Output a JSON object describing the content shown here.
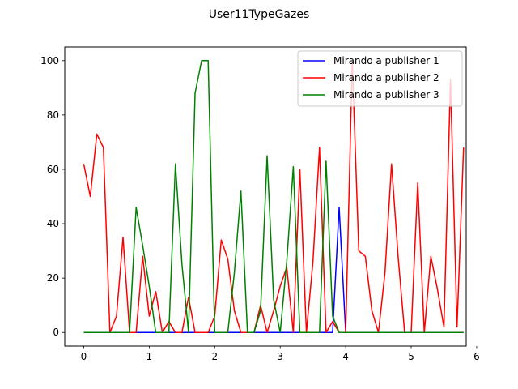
{
  "chart_data": {
    "type": "line",
    "title": "User11TypeGazes",
    "xlabel": "",
    "ylabel": "",
    "xlim": [
      -0.29,
      5.84
    ],
    "ylim": [
      -5,
      105
    ],
    "xticks": [
      0,
      1,
      2,
      3,
      4,
      5,
      6
    ],
    "yticks": [
      0,
      20,
      40,
      60,
      80,
      100
    ],
    "grid": false,
    "legend": "top-right",
    "x": [
      0.0,
      0.1,
      0.2,
      0.3,
      0.4,
      0.5,
      0.6,
      0.7,
      0.8,
      0.9,
      1.0,
      1.1,
      1.2,
      1.3,
      1.4,
      1.5,
      1.6,
      1.7,
      1.8,
      1.9,
      2.0,
      2.1,
      2.2,
      2.3,
      2.4,
      2.5,
      2.6,
      2.7,
      2.8,
      2.9,
      3.0,
      3.1,
      3.2,
      3.3,
      3.4,
      3.5,
      3.6,
      3.7,
      3.8,
      3.9,
      4.0,
      4.1,
      4.2,
      4.3,
      4.4,
      4.5,
      4.6,
      4.7,
      4.8,
      4.9,
      5.0,
      5.1,
      5.2,
      5.3,
      5.4,
      5.5,
      5.6,
      5.7,
      5.8
    ],
    "series": [
      {
        "name": "Mirando a publisher 1",
        "color": "#0000ff",
        "values": [
          0,
          0,
          0,
          0,
          0,
          0,
          0,
          0,
          0,
          0,
          0,
          0,
          0,
          0,
          0,
          0,
          0,
          0,
          0,
          0,
          0,
          0,
          0,
          0,
          0,
          0,
          0,
          0,
          0,
          0,
          0,
          0,
          0,
          0,
          0,
          0,
          0,
          0,
          0,
          46,
          0,
          0,
          0,
          0,
          0,
          0,
          0,
          0,
          0,
          0,
          0,
          0,
          0,
          0,
          0,
          0,
          0,
          0,
          0
        ]
      },
      {
        "name": "Mirando a publisher 2",
        "color": "#ff0000",
        "values": [
          62,
          50,
          73,
          68,
          0,
          6,
          35,
          0,
          0,
          28,
          6,
          15,
          0,
          4,
          0,
          0,
          13,
          0,
          0,
          0,
          6,
          34,
          27,
          8,
          0,
          0,
          0,
          10,
          0,
          8,
          17,
          24,
          0,
          60,
          0,
          26,
          68,
          0,
          4,
          0,
          0,
          100,
          30,
          28,
          8,
          0,
          22,
          62,
          28,
          0,
          0,
          55,
          0,
          28,
          16,
          2,
          93,
          2,
          68
        ]
      },
      {
        "name": "Mirando a publisher 3",
        "color": "#008000",
        "values": [
          0,
          0,
          0,
          0,
          0,
          0,
          0,
          0,
          46,
          32,
          17,
          0,
          0,
          0,
          62,
          25,
          0,
          88,
          100,
          100,
          0,
          0,
          0,
          22,
          52,
          0,
          0,
          8,
          65,
          12,
          0,
          26,
          61,
          0,
          0,
          0,
          0,
          63,
          6,
          0,
          0,
          0,
          0,
          0,
          0,
          0,
          0,
          0,
          0,
          0,
          0,
          0,
          0,
          0,
          0,
          0,
          0,
          0,
          0
        ]
      }
    ]
  }
}
